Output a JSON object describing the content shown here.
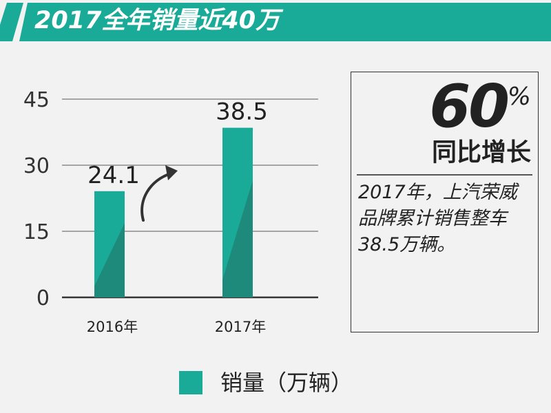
{
  "banner": {
    "title": "2017全年销量近40万",
    "color": "#1aab98"
  },
  "chart_data": {
    "type": "bar",
    "categories": [
      "2016年",
      "2017年"
    ],
    "series": [
      {
        "name": "销量（万辆）",
        "values": [
          24.1,
          38.5
        ],
        "data_labels": [
          "24.1",
          "38.5"
        ],
        "color": "#1aab98",
        "shade_color": "#1e8a7c"
      }
    ],
    "ylim": [
      0,
      45
    ],
    "yticks": [
      "0",
      "15",
      "30",
      "45"
    ],
    "grid": true,
    "legend_position": "bottom",
    "annotation_icon": "curved-up-arrow-icon"
  },
  "info": {
    "big_number": "60",
    "percent_sign": "%",
    "subtitle": "同比增长",
    "description": "2017年，上汽荣威品牌累计销售整车38.5万辆。"
  },
  "legend": {
    "label": "销量（万辆）"
  }
}
